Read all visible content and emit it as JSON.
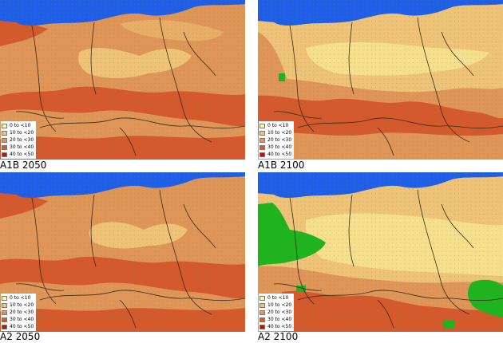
{
  "palette": {
    "sea": "#1f5fe8",
    "outside_europe": "#ffffff",
    "border_line": "#3a2a1a",
    "grid_dot": "#6e8f2c",
    "no_data_green": "#1fb41f"
  },
  "legend": [
    {
      "label": "0 to <10",
      "color": "#fbf7a0"
    },
    {
      "label": "10 to <20",
      "color": "#eec277"
    },
    {
      "label": "20 to <30",
      "color": "#df9458"
    },
    {
      "label": "30 to <40",
      "color": "#d45a2e"
    },
    {
      "label": "40 to <50",
      "color": "#c40f10"
    }
  ],
  "panels": [
    {
      "caption": "A1B 2050",
      "scenario": "A1B",
      "year": "2050"
    },
    {
      "caption": "A1B 2100",
      "scenario": "A1B",
      "year": "2100"
    },
    {
      "caption": "A2 2050",
      "scenario": "A2",
      "year": "2050"
    },
    {
      "caption": "A2 2100",
      "scenario": "A2",
      "year": "2100"
    }
  ]
}
